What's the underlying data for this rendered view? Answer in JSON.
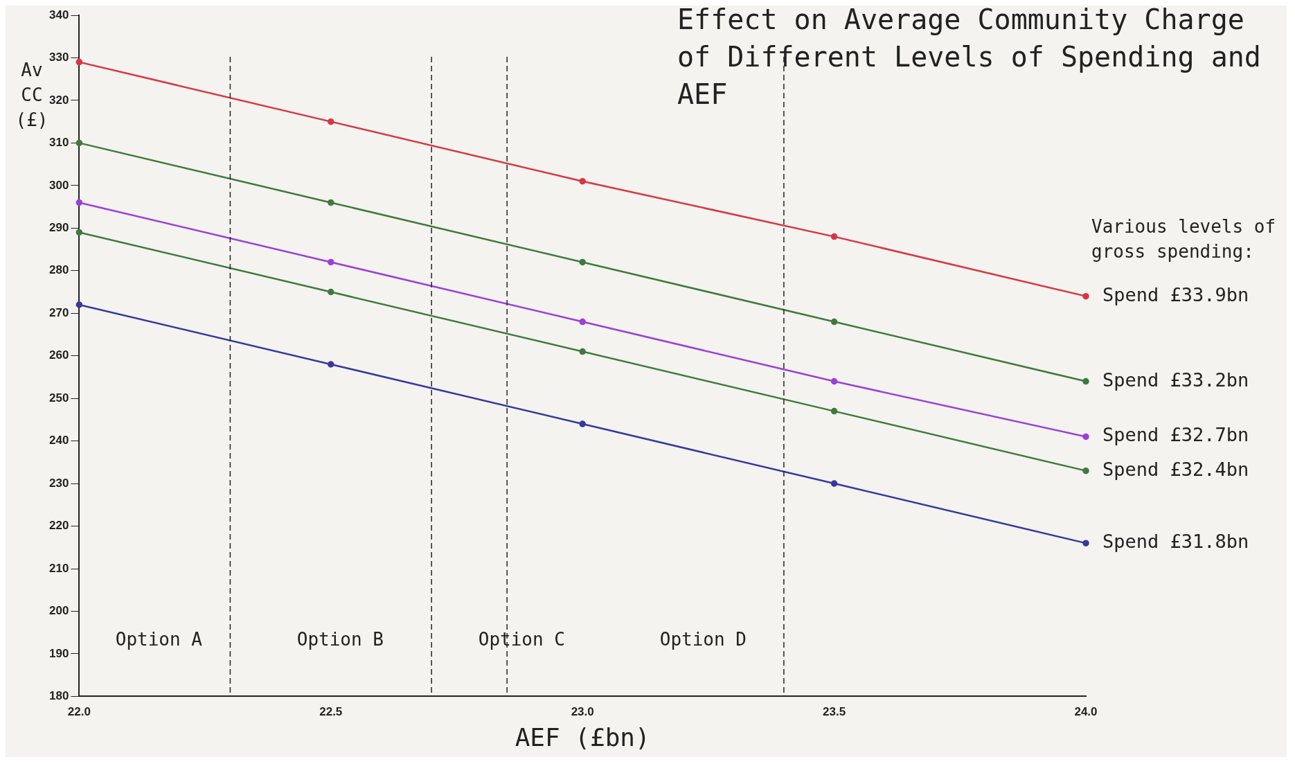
{
  "chart_data": {
    "type": "line",
    "title": "Effect on Average Community Charge of Different Levels of Spending and AEF",
    "xlabel": "AEF (£bn)",
    "ylabel": "Av CC (£)",
    "legend_title": "Various levels of gross spending:",
    "x": [
      22,
      22.5,
      23,
      23.5,
      24
    ],
    "series": [
      {
        "name": "Spend £33.9bn",
        "color": "#d83545",
        "values": [
          329,
          315,
          301,
          288,
          274
        ]
      },
      {
        "name": "Spend £33.2bn",
        "color": "#3f7a3f",
        "values": [
          310,
          296,
          282,
          268,
          254
        ]
      },
      {
        "name": "Spend £32.7bn",
        "color": "#9a40d8",
        "values": [
          296,
          282,
          268,
          254,
          241
        ]
      },
      {
        "name": "Spend £32.4bn",
        "color": "#3f7a3f",
        "values": [
          289,
          275,
          261,
          247,
          233
        ]
      },
      {
        "name": "Spend £31.8bn",
        "color": "#3838a0",
        "values": [
          272,
          258,
          244,
          230,
          216
        ]
      }
    ],
    "xlim": [
      22,
      24
    ],
    "xticks": [
      {
        "value": 22,
        "label": "22.0"
      },
      {
        "value": 22.5,
        "label": "22.5"
      },
      {
        "value": 23,
        "label": "23.0"
      },
      {
        "value": 23.5,
        "label": "23.5"
      },
      {
        "value": 24,
        "label": "24.0"
      }
    ],
    "ylim": [
      180,
      340
    ],
    "yticks": [
      180,
      190,
      200,
      210,
      220,
      230,
      240,
      250,
      260,
      270,
      280,
      290,
      300,
      310,
      320,
      330,
      340
    ],
    "grid": false,
    "legend": "right",
    "marker": "circle",
    "line_style": "solid",
    "ref_lines": [
      {
        "axis": "x",
        "value": 22.3,
        "line_style": "dashed",
        "color": "#222222"
      },
      {
        "axis": "x",
        "value": 22.7,
        "line_style": "dashed",
        "color": "#222222"
      },
      {
        "axis": "x",
        "value": 22.85,
        "line_style": "dashed",
        "color": "#222222"
      },
      {
        "axis": "x",
        "value": 23.4,
        "line_style": "dashed",
        "color": "#222222"
      }
    ],
    "annotations": [
      "Option A",
      "Option B",
      "Option C",
      "Option D"
    ]
  }
}
